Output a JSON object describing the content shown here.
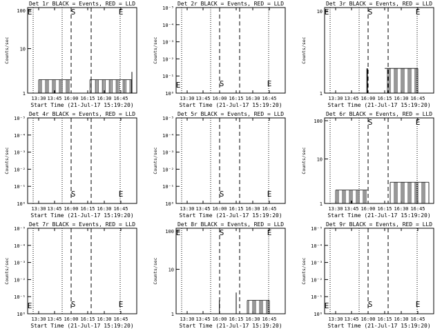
{
  "chart_data": [
    {
      "type": "line",
      "title": "Det 1r BLACK = Events, RED = LLD",
      "ylabel": "Counts/sec",
      "xlabel": "Start Time (21-Jul-17 15:19:20)",
      "x_ticks": [
        "13:30",
        "13:45",
        "16:00",
        "16:15",
        "16:30",
        "16:45"
      ],
      "y_ticks": [
        "1",
        "10",
        "100"
      ],
      "ylim": [
        1,
        100
      ],
      "y_scale": "log",
      "markers": [
        {
          "label": "S",
          "x": "16:00"
        },
        {
          "label": "E",
          "x": "16:45"
        },
        {
          "label": "E",
          "x": "13:00"
        }
      ],
      "segments": [
        {
          "x": [
            "13:30",
            "15:55"
          ],
          "values": [
            1,
            2
          ]
        },
        {
          "x": [
            "16:17",
            "16:55"
          ],
          "values": [
            1,
            2
          ]
        }
      ],
      "spikes": [
        {
          "x": "16:55",
          "value": 3
        }
      ]
    },
    {
      "type": "line",
      "title": "Det 2r BLACK = Events, RED = LLD",
      "ylabel": "Counts/sec",
      "xlabel": "Start Time (21-Jul-17 15:19:20)",
      "x_ticks": [
        "13:30",
        "13:45",
        "16:00",
        "16:15",
        "16:30",
        "16:45"
      ],
      "y_ticks": [
        "10⁰",
        "10⁻¹",
        "10⁻²",
        "10⁻³",
        "10⁻⁴",
        "10⁻⁵"
      ],
      "ylim": [
        0,
        1
      ],
      "y_scale": "log",
      "markers": [
        {
          "label": "S",
          "x": "16:00"
        },
        {
          "label": "E",
          "x": "16:45"
        },
        {
          "label": "E",
          "x": "13:00"
        }
      ],
      "segments": [],
      "spikes": []
    },
    {
      "type": "line",
      "title": "Det 3r BLACK = Events, RED = LLD",
      "ylabel": "Counts/sec",
      "xlabel": "Start Time (21-Jul-17 15:19:20)",
      "x_ticks": [
        "13:30",
        "13:45",
        "16:00",
        "16:15",
        "16:30",
        "16:45"
      ],
      "y_ticks": [
        "1",
        "10"
      ],
      "ylim": [
        1,
        10
      ],
      "y_scale": "log",
      "markers": [
        {
          "label": "S",
          "x": "16:00"
        },
        {
          "label": "E",
          "x": "16:45"
        },
        {
          "label": "E",
          "x": "13:00"
        }
      ],
      "segments": [
        {
          "x": [
            "16:15",
            "16:45"
          ],
          "values": [
            1,
            2
          ]
        }
      ],
      "spikes": [
        {
          "x": "15:50",
          "value": 2
        },
        {
          "x": "15:55",
          "value": 2
        }
      ]
    },
    {
      "type": "line",
      "title": "Det 4r BLACK = Events, RED = LLD",
      "ylabel": "Counts/sec",
      "xlabel": "Start Time (21-Jul-17 15:19:20)",
      "x_ticks": [
        "13:30",
        "13:45",
        "16:00",
        "16:15",
        "16:30",
        "16:45"
      ],
      "y_ticks": [
        "10⁰",
        "10⁻¹",
        "10⁻²",
        "10⁻³",
        "10⁻⁴",
        "10⁻⁵"
      ],
      "ylim": [
        0,
        1
      ],
      "y_scale": "log",
      "markers": [
        {
          "label": "S",
          "x": "16:00"
        },
        {
          "label": "E",
          "x": "16:45"
        }
      ],
      "segments": [],
      "spikes": []
    },
    {
      "type": "line",
      "title": "Det 5r BLACK = Events, RED = LLD",
      "ylabel": "Counts/sec",
      "xlabel": "Start Time (21-Jul-17 15:19:20)",
      "x_ticks": [
        "13:30",
        "13:45",
        "16:00",
        "16:15",
        "16:30",
        "16:45"
      ],
      "y_ticks": [
        "10⁰",
        "10⁻¹",
        "10⁻²",
        "10⁻³",
        "10⁻⁴",
        "10⁻⁵"
      ],
      "ylim": [
        0,
        1
      ],
      "y_scale": "log",
      "markers": [
        {
          "label": "S",
          "x": "16:00"
        },
        {
          "label": "E",
          "x": "16:45"
        }
      ],
      "segments": [],
      "spikes": []
    },
    {
      "type": "line",
      "title": "Det 6r BLACK = Events, RED = LLD",
      "ylabel": "Counts/sec",
      "xlabel": "Start Time (21-Jul-17 15:19:20)",
      "x_ticks": [
        "13:30",
        "13:45",
        "16:00",
        "16:15",
        "16:30",
        "16:45"
      ],
      "y_ticks": [
        "1",
        "10",
        "100"
      ],
      "ylim": [
        1,
        100
      ],
      "y_scale": "log",
      "markers": [
        {
          "label": "S",
          "x": "16:00"
        },
        {
          "label": "E",
          "x": "16:45"
        }
      ],
      "segments": [
        {
          "x": [
            "13:30",
            "15:55"
          ],
          "values": [
            1,
            2
          ]
        },
        {
          "x": [
            "16:20",
            "16:55"
          ],
          "values": [
            1,
            3
          ]
        }
      ],
      "spikes": []
    },
    {
      "type": "line",
      "title": "Det 7r BLACK = Events, RED = LLD",
      "ylabel": "Counts/sec",
      "xlabel": "Start Time (21-Jul-17 15:19:20)",
      "x_ticks": [
        "13:30",
        "13:45",
        "16:00",
        "16:15",
        "16:30",
        "16:45"
      ],
      "y_ticks": [
        "10⁰",
        "10⁻¹",
        "10⁻²",
        "10⁻³",
        "10⁻⁴",
        "10⁻⁵"
      ],
      "ylim": [
        0,
        1
      ],
      "y_scale": "log",
      "markers": [
        {
          "label": "S",
          "x": "16:00"
        },
        {
          "label": "E",
          "x": "16:45"
        },
        {
          "label": "E",
          "x": "13:00"
        }
      ],
      "segments": [],
      "spikes": []
    },
    {
      "type": "line",
      "title": "Det 8r BLACK = Events, RED = LLD",
      "ylabel": "Counts/sec",
      "xlabel": "Start Time (21-Jul-17 15:19:20)",
      "x_ticks": [
        "13:30",
        "13:45",
        "16:00",
        "16:15",
        "16:30",
        "16:45"
      ],
      "y_ticks": [
        "1",
        "10",
        "100"
      ],
      "ylim": [
        1,
        100
      ],
      "y_scale": "log",
      "markers": [
        {
          "label": "S",
          "x": "16:00"
        },
        {
          "label": "E",
          "x": "16:45"
        },
        {
          "label": "E",
          "x": "13:00"
        }
      ],
      "segments": [
        {
          "x": [
            "16:25",
            "16:45"
          ],
          "values": [
            1,
            2
          ]
        }
      ],
      "spikes": [
        {
          "x": "15:58",
          "value": 2
        },
        {
          "x": "16:15",
          "value": 3
        }
      ]
    },
    {
      "type": "line",
      "title": "Det 9r BLACK = Events, RED = LLD",
      "ylabel": "Counts/sec",
      "xlabel": "Start Time (21-Jul-17 15:19:20)",
      "x_ticks": [
        "13:30",
        "13:45",
        "16:00",
        "16:15",
        "16:30",
        "16:45"
      ],
      "y_ticks": [
        "10⁰",
        "10⁻¹",
        "10⁻²",
        "10⁻³",
        "10⁻⁴",
        "10⁻⁵"
      ],
      "ylim": [
        0,
        1
      ],
      "y_scale": "log",
      "markers": [
        {
          "label": "S",
          "x": "16:00"
        },
        {
          "label": "E",
          "x": "16:45"
        },
        {
          "label": "E",
          "x": "13:00"
        }
      ],
      "segments": [],
      "spikes": []
    }
  ]
}
